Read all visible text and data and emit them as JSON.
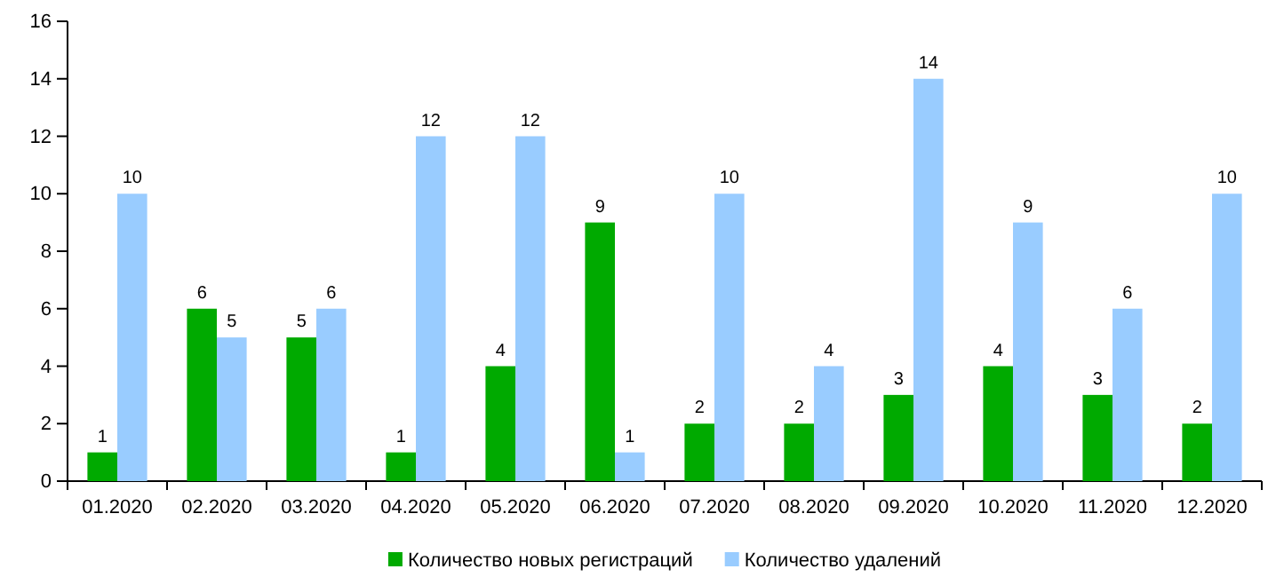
{
  "chart_data": {
    "type": "bar",
    "categories": [
      "01.2020",
      "02.2020",
      "03.2020",
      "04.2020",
      "05.2020",
      "06.2020",
      "07.2020",
      "08.2020",
      "09.2020",
      "10.2020",
      "11.2020",
      "12.2020"
    ],
    "series": [
      {
        "name": "Количество новых регистраций",
        "color": "#00aa00",
        "values": [
          1,
          6,
          5,
          1,
          4,
          9,
          2,
          2,
          3,
          4,
          3,
          2
        ]
      },
      {
        "name": "Количество удалений",
        "color": "#99ccff",
        "values": [
          10,
          5,
          6,
          12,
          12,
          1,
          10,
          4,
          14,
          9,
          6,
          10
        ]
      }
    ],
    "ylim": [
      0,
      16
    ],
    "yticks": [
      0,
      2,
      4,
      6,
      8,
      10,
      12,
      14,
      16
    ],
    "data_labels": true,
    "legend": "bottom"
  }
}
